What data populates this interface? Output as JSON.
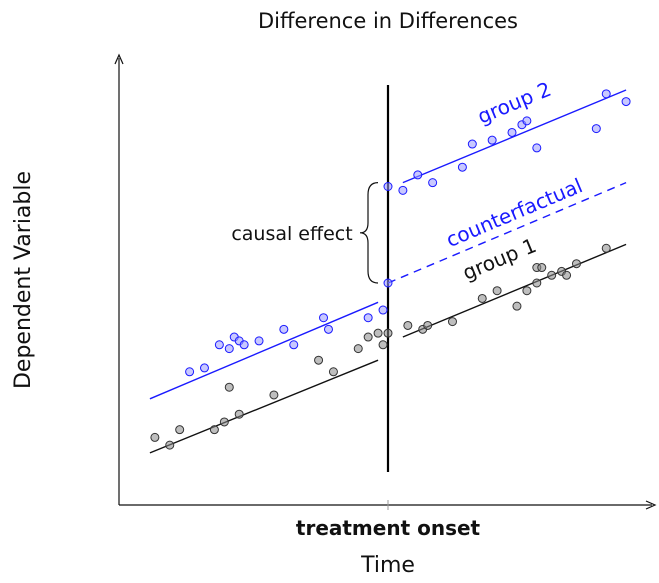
{
  "chart_data": {
    "type": "scatter",
    "title": "Difference in Differences",
    "xlabel": "Time",
    "ylabel": "Dependent Variable",
    "xtick_label": "treatment onset",
    "xlim": [
      0,
      10
    ],
    "ylim": [
      0,
      10
    ],
    "treatment_x": 5,
    "grid": false,
    "colors": {
      "group1": "#111111",
      "group2": "#1a1aff",
      "axis": "#111111"
    },
    "annotations": {
      "causal_effect": "causal effect",
      "group1": "group 1",
      "group2": "group 2",
      "counterfactual": "counterfactual"
    },
    "series": [
      {
        "name": "group 1",
        "line_pre": [
          [
            0.2,
            0.6
          ],
          [
            4.8,
            3.0
          ]
        ],
        "line_post": [
          [
            5.3,
            3.6
          ],
          [
            9.8,
            6.0
          ]
        ],
        "points": [
          [
            0.3,
            1.0
          ],
          [
            0.6,
            0.8
          ],
          [
            0.8,
            1.2
          ],
          [
            1.5,
            1.2
          ],
          [
            1.7,
            1.4
          ],
          [
            1.8,
            2.3
          ],
          [
            2.0,
            1.6
          ],
          [
            2.7,
            2.1
          ],
          [
            3.6,
            3.0
          ],
          [
            3.9,
            2.7
          ],
          [
            4.4,
            3.3
          ],
          [
            4.6,
            3.6
          ],
          [
            4.8,
            3.7
          ],
          [
            4.9,
            3.4
          ],
          [
            5.0,
            3.7
          ],
          [
            5.4,
            3.9
          ],
          [
            5.7,
            3.8
          ],
          [
            5.8,
            3.9
          ],
          [
            6.3,
            4.0
          ],
          [
            6.9,
            4.6
          ],
          [
            7.2,
            4.8
          ],
          [
            7.6,
            4.4
          ],
          [
            7.8,
            4.8
          ],
          [
            8.0,
            5.0
          ],
          [
            8.0,
            5.4
          ],
          [
            8.1,
            5.4
          ],
          [
            8.3,
            5.2
          ],
          [
            8.5,
            5.3
          ],
          [
            8.6,
            5.2
          ],
          [
            8.8,
            5.5
          ],
          [
            9.4,
            5.9
          ]
        ]
      },
      {
        "name": "group 2",
        "line_pre": [
          [
            0.2,
            2.0
          ],
          [
            4.8,
            4.5
          ]
        ],
        "line_post": [
          [
            5.3,
            7.6
          ],
          [
            9.8,
            10.0
          ]
        ],
        "counterfactual": [
          [
            5.0,
            5.0
          ],
          [
            9.8,
            7.6
          ]
        ],
        "points": [
          [
            1.0,
            2.7
          ],
          [
            1.3,
            2.8
          ],
          [
            1.6,
            3.4
          ],
          [
            1.8,
            3.3
          ],
          [
            1.9,
            3.6
          ],
          [
            2.0,
            3.5
          ],
          [
            2.1,
            3.4
          ],
          [
            2.4,
            3.5
          ],
          [
            2.9,
            3.8
          ],
          [
            3.1,
            3.4
          ],
          [
            3.7,
            4.1
          ],
          [
            3.8,
            3.8
          ],
          [
            4.6,
            4.1
          ],
          [
            4.9,
            4.3
          ],
          [
            5.0,
            5.0
          ],
          [
            5.0,
            7.5
          ],
          [
            5.3,
            7.4
          ],
          [
            5.6,
            7.8
          ],
          [
            5.9,
            7.6
          ],
          [
            6.5,
            8.0
          ],
          [
            6.7,
            8.6
          ],
          [
            7.1,
            8.7
          ],
          [
            7.5,
            8.9
          ],
          [
            7.7,
            9.1
          ],
          [
            7.8,
            9.2
          ],
          [
            8.0,
            8.5
          ],
          [
            9.2,
            9.0
          ],
          [
            9.4,
            9.9
          ],
          [
            9.8,
            9.7
          ]
        ]
      }
    ]
  }
}
